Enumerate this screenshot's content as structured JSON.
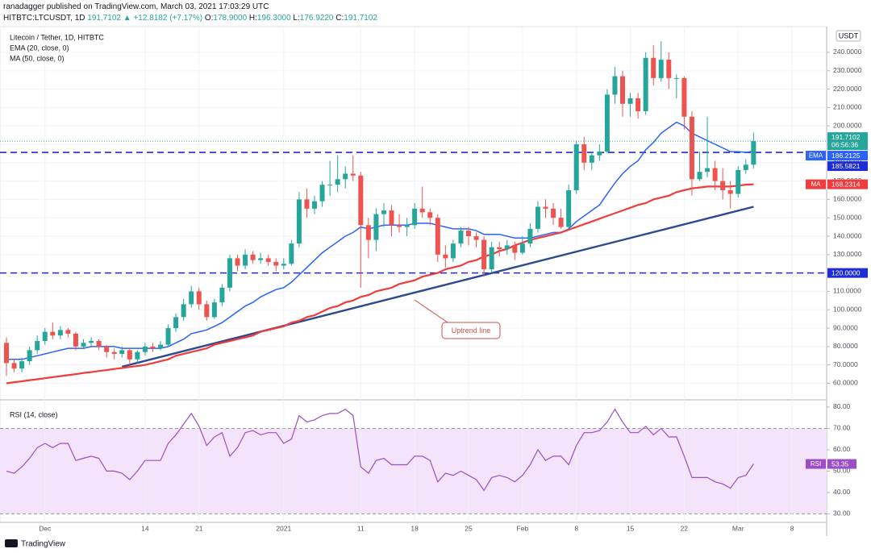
{
  "header": {
    "publisher": "ranadagger published on TradingView.com, March 03, 2021 17:03:29 UTC",
    "symbol": "HITBTC:LTCUSDT, 1D",
    "quote": "191.7102 ▲ +12.8182 (+7.17%)",
    "o_label": "O:",
    "o": "178.9000",
    "h_label": "H:",
    "h": "196.3000",
    "l_label": "L:",
    "l": "176.9220",
    "c_label": "C:",
    "c": "191.7102"
  },
  "footer": {
    "brand": "TradingView"
  },
  "chart_data": {
    "type": "candlestick",
    "title": "Litecoin / Tether, 1D, HITBTC",
    "currency": "USDT",
    "categories": [
      null,
      null,
      null,
      null,
      null,
      "Dec",
      null,
      null,
      null,
      null,
      null,
      null,
      null,
      null,
      null,
      null,
      null,
      null,
      "14",
      null,
      null,
      null,
      null,
      null,
      null,
      "21",
      null,
      null,
      null,
      null,
      null,
      null,
      null,
      null,
      null,
      null,
      "2021",
      null,
      null,
      null,
      null,
      null,
      null,
      null,
      null,
      null,
      "11",
      null,
      null,
      null,
      null,
      null,
      null,
      "18",
      null,
      null,
      null,
      null,
      null,
      null,
      "25",
      null,
      null,
      null,
      null,
      null,
      null,
      "Feb",
      null,
      null,
      null,
      null,
      null,
      null,
      "8",
      null,
      null,
      null,
      null,
      null,
      null,
      "15",
      null,
      null,
      null,
      null,
      null,
      null,
      "22",
      null,
      null,
      null,
      null,
      null,
      null,
      "Mar",
      null,
      null,
      null,
      null,
      null,
      null,
      "8",
      null,
      null,
      null,
      null
    ],
    "ohlc": [
      [
        82,
        85,
        64,
        71
      ],
      [
        71,
        73,
        66,
        68
      ],
      [
        68,
        74,
        66,
        72
      ],
      [
        72,
        80,
        70,
        78
      ],
      [
        78,
        86,
        76,
        83
      ],
      [
        83,
        90,
        81,
        88
      ],
      [
        88,
        93,
        84,
        86
      ],
      [
        86,
        91,
        84,
        89
      ],
      [
        89,
        90,
        85,
        87
      ],
      [
        87,
        88,
        78,
        80
      ],
      [
        80,
        84,
        79,
        82
      ],
      [
        82,
        85,
        80,
        83
      ],
      [
        83,
        84,
        78,
        80
      ],
      [
        80,
        81,
        74,
        77
      ],
      [
        77,
        79,
        73,
        76
      ],
      [
        76,
        80,
        74,
        78
      ],
      [
        78,
        79,
        70,
        73
      ],
      [
        73,
        78,
        71,
        77
      ],
      [
        77,
        82,
        75,
        80
      ],
      [
        80,
        82,
        77,
        79
      ],
      [
        79,
        83,
        78,
        81
      ],
      [
        81,
        92,
        80,
        90
      ],
      [
        90,
        98,
        88,
        96
      ],
      [
        96,
        106,
        94,
        103
      ],
      [
        103,
        113,
        101,
        110
      ],
      [
        110,
        112,
        100,
        103
      ],
      [
        103,
        105,
        94,
        96
      ],
      [
        96,
        106,
        95,
        104
      ],
      [
        104,
        114,
        102,
        112
      ],
      [
        112,
        130,
        110,
        128
      ],
      [
        128,
        130,
        121,
        124
      ],
      [
        124,
        133,
        122,
        130
      ],
      [
        130,
        132,
        125,
        127
      ],
      [
        127,
        131,
        125,
        128
      ],
      [
        128,
        130,
        124,
        126
      ],
      [
        126,
        128,
        121,
        124
      ],
      [
        124,
        128,
        122,
        125
      ],
      [
        125,
        138,
        124,
        136
      ],
      [
        136,
        164,
        134,
        160
      ],
      [
        160,
        166,
        150,
        155
      ],
      [
        155,
        162,
        152,
        159
      ],
      [
        159,
        170,
        156,
        168
      ],
      [
        168,
        181,
        162,
        168
      ],
      [
        168,
        184,
        164,
        171
      ],
      [
        171,
        178,
        166,
        174
      ],
      [
        174,
        184,
        170,
        173
      ],
      [
        173,
        175,
        112,
        146
      ],
      [
        146,
        150,
        128,
        138
      ],
      [
        138,
        155,
        132,
        152
      ],
      [
        152,
        158,
        145,
        154
      ],
      [
        154,
        157,
        140,
        146
      ],
      [
        146,
        152,
        142,
        145
      ],
      [
        145,
        150,
        140,
        146
      ],
      [
        146,
        158,
        144,
        155
      ],
      [
        155,
        167,
        150,
        153
      ],
      [
        153,
        155,
        146,
        150
      ],
      [
        150,
        152,
        126,
        130
      ],
      [
        130,
        135,
        123,
        128
      ],
      [
        128,
        138,
        126,
        136
      ],
      [
        136,
        145,
        134,
        143
      ],
      [
        143,
        145,
        135,
        140
      ],
      [
        140,
        142,
        134,
        138
      ],
      [
        138,
        140,
        118,
        122
      ],
      [
        122,
        137,
        120,
        134
      ],
      [
        134,
        137,
        129,
        133
      ],
      [
        133,
        138,
        130,
        135
      ],
      [
        135,
        137,
        127,
        131
      ],
      [
        131,
        140,
        130,
        136
      ],
      [
        136,
        147,
        134,
        144
      ],
      [
        144,
        159,
        142,
        156
      ],
      [
        156,
        160,
        150,
        155
      ],
      [
        155,
        158,
        146,
        150
      ],
      [
        150,
        155,
        144,
        145
      ],
      [
        145,
        168,
        144,
        165
      ],
      [
        165,
        192,
        163,
        190
      ],
      [
        190,
        194,
        176,
        180
      ],
      [
        180,
        186,
        176,
        184
      ],
      [
        184,
        190,
        181,
        186
      ],
      [
        186,
        220,
        185,
        217
      ],
      [
        217,
        232,
        212,
        227
      ],
      [
        227,
        230,
        205,
        212
      ],
      [
        212,
        218,
        205,
        215
      ],
      [
        215,
        218,
        204,
        208
      ],
      [
        208,
        240,
        206,
        237
      ],
      [
        237,
        244,
        222,
        226
      ],
      [
        226,
        246,
        224,
        236
      ],
      [
        236,
        240,
        220,
        226
      ],
      [
        226,
        228,
        215,
        226
      ],
      [
        226,
        227,
        198,
        205
      ],
      [
        205,
        208,
        162,
        171
      ],
      [
        171,
        186,
        170,
        175
      ],
      [
        175,
        205,
        172,
        177
      ],
      [
        177,
        181,
        165,
        170
      ],
      [
        170,
        177,
        160,
        165
      ],
      [
        165,
        170,
        155,
        163
      ],
      [
        163,
        178,
        161,
        176
      ],
      [
        176,
        182,
        174,
        178.9
      ],
      [
        178.9,
        196.3,
        176.922,
        191.7102
      ],
      null,
      null,
      null,
      null,
      null,
      null,
      null,
      null,
      null
    ],
    "up_color": "#26a69a",
    "down_color": "#ef5350",
    "countdown": "06:56:36",
    "series": [
      {
        "name": "EMA (20, close, 0)",
        "short": "EMA",
        "color": "#2962ff",
        "values": [
          73,
          73,
          73,
          74,
          75,
          76,
          77,
          78,
          79,
          79,
          79,
          80,
          80,
          80,
          80,
          79,
          79,
          79,
          79,
          79,
          79,
          80,
          82,
          84,
          87,
          88,
          89,
          91,
          93,
          96,
          99,
          102,
          104,
          107,
          109,
          111,
          112,
          115,
          119,
          123,
          127,
          131,
          134,
          137,
          140,
          142,
          145,
          144,
          145,
          146,
          146,
          146,
          146,
          147,
          147,
          147,
          146,
          145,
          144,
          144,
          144,
          143,
          141,
          141,
          141,
          140,
          139,
          139,
          139,
          140,
          141,
          142,
          142,
          144,
          148,
          151,
          154,
          157,
          163,
          169,
          174,
          178,
          181,
          187,
          191,
          196,
          199,
          202,
          200,
          196,
          194,
          192,
          190,
          188,
          186,
          186,
          185.6,
          186.2125,
          null,
          null,
          null,
          null,
          null,
          null,
          null,
          null,
          null
        ]
      },
      {
        "name": "MA (50, close, 0)",
        "short": "MA",
        "color": "#f23b3b",
        "values": [
          60,
          60.6,
          61.1,
          61.7,
          62.2,
          62.8,
          63.3,
          63.9,
          64.4,
          65,
          65.6,
          66.1,
          66.7,
          67.2,
          67.8,
          68.3,
          68.9,
          69.4,
          70,
          71,
          72,
          73,
          75,
          76,
          77,
          78,
          79,
          81,
          82,
          83,
          84,
          85,
          86,
          88,
          89,
          90,
          91,
          93,
          94,
          96,
          97,
          99,
          101,
          102,
          104,
          105,
          107,
          108,
          110,
          111,
          112,
          114,
          115,
          116,
          118,
          119,
          120,
          122,
          123,
          124,
          126,
          127,
          129,
          130,
          132,
          133,
          135,
          136.5,
          138,
          139,
          140,
          141,
          142,
          143.5,
          145,
          146.5,
          148,
          149.5,
          151,
          152.5,
          154,
          155.5,
          157,
          158,
          160,
          161,
          162,
          164,
          165,
          166,
          166.5,
          167,
          167,
          167,
          167,
          167.5,
          168,
          168.2314,
          null,
          null,
          null,
          null,
          null,
          null,
          null,
          null,
          null
        ]
      }
    ],
    "levels": [
      185.5821,
      {
        "value": 120,
        "label": "120.0000"
      }
    ],
    "level_color": "#1e2bd6",
    "trendline": {
      "values": [
        69,
        156
      ],
      "color": "#2c4a8e",
      "label": "Uptrend line"
    },
    "ylim": [
      51,
      254
    ],
    "yticks": [
      {
        "value": 60,
        "label": "60.0000"
      },
      {
        "value": 70,
        "label": "70.0000"
      },
      {
        "value": 80,
        "label": "80.0000"
      },
      {
        "value": 90,
        "label": "90.0000"
      },
      {
        "value": 100,
        "label": "100.0000"
      },
      {
        "value": 110,
        "label": "110.0000"
      },
      {
        "value": 120,
        "label": "120.0000"
      },
      {
        "value": 130,
        "label": "130.0000"
      },
      {
        "value": 140,
        "label": "140.0000"
      },
      {
        "value": 150,
        "label": "150.0000"
      },
      {
        "value": 160,
        "label": "160.0000"
      },
      {
        "value": 170,
        "label": "170.0000"
      },
      {
        "value": 180,
        "label": "180.0000"
      },
      {
        "value": 190,
        "label": "190.0000"
      },
      {
        "value": 200,
        "label": "200.0000"
      },
      {
        "value": 210,
        "label": "210.0000"
      },
      {
        "value": 220,
        "label": "220.0000"
      },
      {
        "value": 230,
        "label": "230.0000"
      },
      {
        "value": 240,
        "label": "240.0000"
      }
    ],
    "grid": true,
    "rsi": {
      "title": "RSI (14, close)",
      "short": "RSI",
      "color": "#9c4fc4",
      "band": [
        30,
        70
      ],
      "band_color": "#f3e3fb",
      "values": [
        50,
        49,
        52,
        56,
        61,
        63,
        61,
        63,
        63,
        55,
        56,
        57,
        56,
        50,
        50,
        49,
        46,
        50,
        55,
        55,
        55,
        63,
        67,
        72,
        77,
        71,
        62,
        66,
        68,
        57,
        61,
        68,
        69,
        67,
        68,
        68,
        63,
        65,
        76,
        73,
        74,
        76,
        77,
        77,
        79,
        76,
        52,
        49,
        55,
        56,
        53,
        53,
        53,
        57,
        57,
        55,
        45,
        49,
        48,
        50,
        48,
        46,
        41,
        47,
        48,
        47,
        45,
        48,
        53,
        60,
        55,
        57,
        57,
        53,
        62,
        68,
        68,
        69,
        73,
        79,
        73,
        68,
        68,
        71,
        67,
        70,
        66,
        66,
        57,
        47,
        47,
        47,
        45,
        44,
        42,
        47,
        48,
        53.35,
        null,
        null,
        null,
        null,
        null,
        null,
        null,
        null,
        null
      ],
      "ylim": [
        26,
        83
      ],
      "yticks": [
        {
          "value": 30,
          "label": "30.00"
        },
        {
          "value": 40,
          "label": "40.00"
        },
        {
          "value": 50,
          "label": "50.00"
        },
        {
          "value": 60,
          "label": "60.00"
        },
        {
          "value": 70,
          "label": "70.00"
        },
        {
          "value": 80,
          "label": "80.00"
        }
      ]
    }
  }
}
